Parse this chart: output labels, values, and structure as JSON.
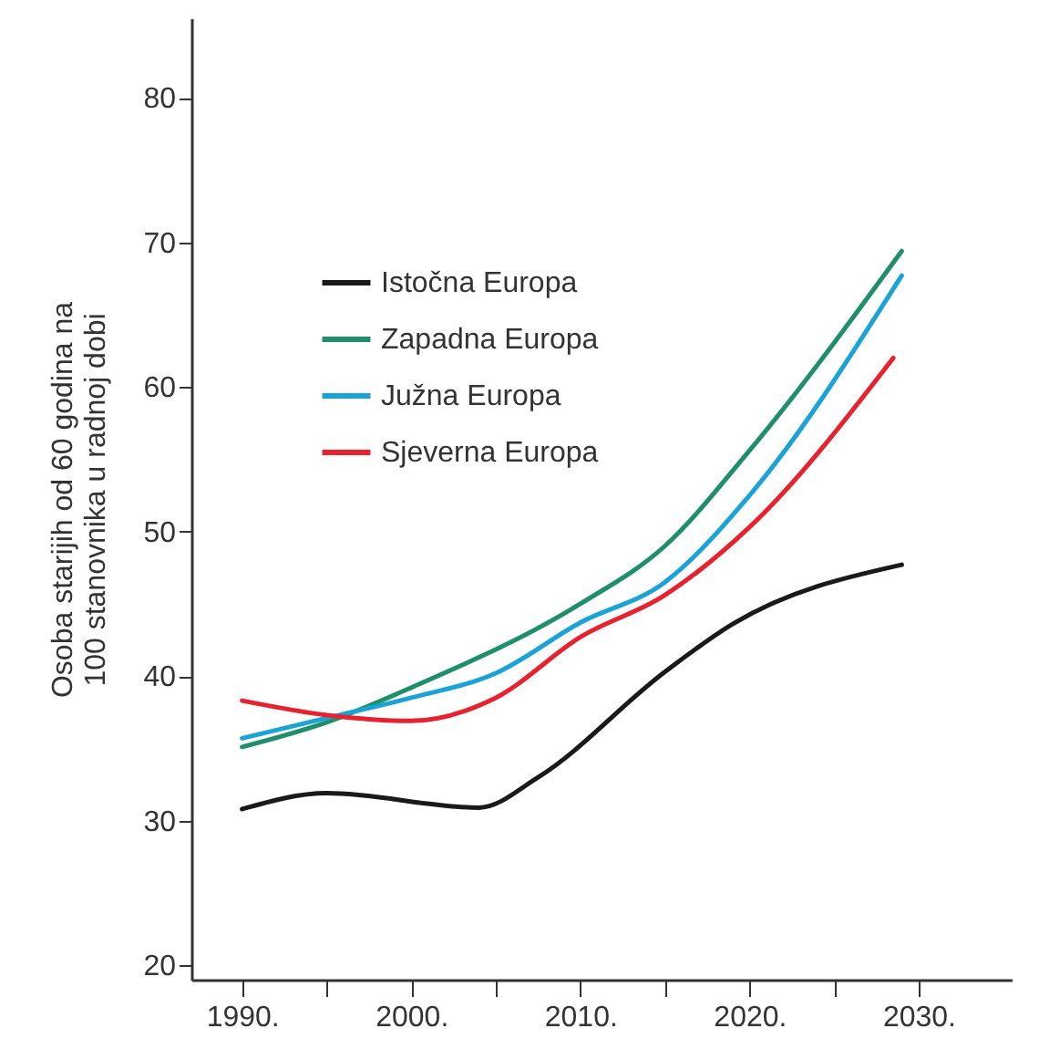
{
  "chart_data": {
    "type": "line",
    "ylabel": "Osoba starijih od 60 godina na 100 stanovnika u radnoj dobi",
    "xlim": [
      1987,
      2035.5
    ],
    "ylim": [
      19,
      85.5
    ],
    "xticks": [
      {
        "value": 1990,
        "label": "1990."
      },
      {
        "value": 1995,
        "label": null
      },
      {
        "value": 2000,
        "label": "2000."
      },
      {
        "value": 2005,
        "label": null
      },
      {
        "value": 2010,
        "label": "2010."
      },
      {
        "value": 2015,
        "label": null
      },
      {
        "value": 2020,
        "label": "2020."
      },
      {
        "value": 2025,
        "label": null
      },
      {
        "value": 2030,
        "label": "2030."
      }
    ],
    "yticks": [
      20,
      30,
      40,
      50,
      60,
      70,
      80
    ],
    "grid": false,
    "legend": "top left",
    "marker": "none",
    "line_style": "solid",
    "series": [
      {
        "name": "Istočna Europa",
        "color": "#1a1a1a",
        "x": [
          1990,
          1995,
          2004,
          2007.5,
          2015,
          2019,
          2029
        ],
        "values": [
          30.8,
          31.9,
          30.9,
          33,
          40.3,
          43.6,
          47.7
        ]
      },
      {
        "name": "Zapadna Europa",
        "color": "#1f8f6a",
        "x": [
          1990,
          1995,
          2000,
          2010,
          2015,
          2020,
          2029
        ],
        "values": [
          35.1,
          36.8,
          39.2,
          45,
          49,
          55.6,
          69.4
        ]
      },
      {
        "name": "Južna Europa",
        "color": "#1ba3d8",
        "x": [
          1990,
          1995,
          2000,
          2005,
          2010,
          2015,
          2020,
          2029
        ],
        "values": [
          35.7,
          37.1,
          38.5,
          40.2,
          43.7,
          46.5,
          52.5,
          67.7
        ]
      },
      {
        "name": "Sjeverna Europa",
        "color": "#e8212e",
        "x": [
          1990,
          1995,
          2000,
          2005,
          2010,
          2015,
          2020,
          2028.5
        ],
        "values": [
          38.3,
          37.3,
          36.9,
          38.5,
          42.7,
          45.6,
          50.3,
          62
        ]
      }
    ]
  }
}
